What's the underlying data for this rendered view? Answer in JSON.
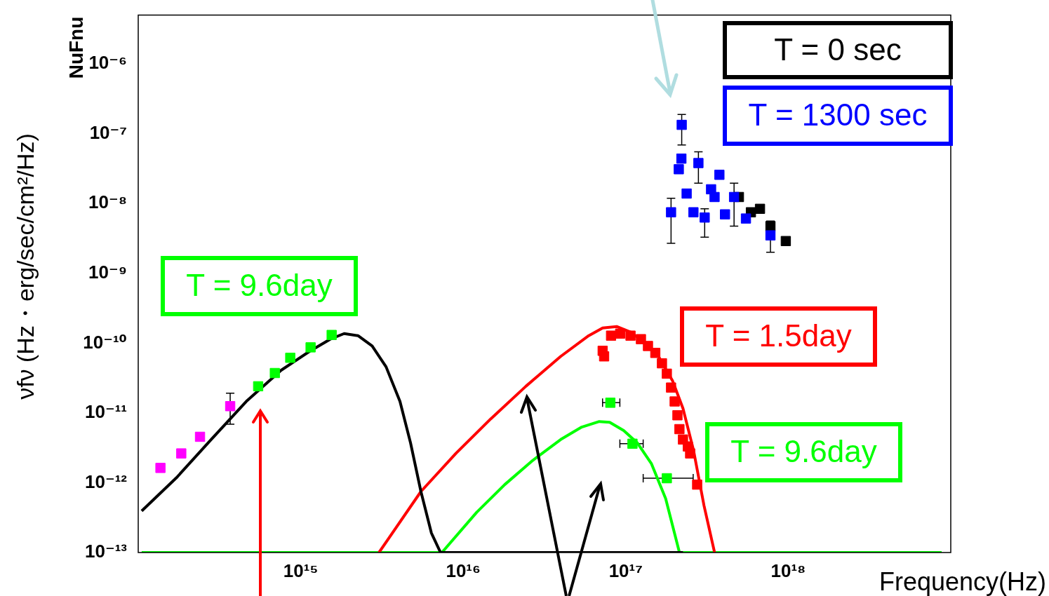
{
  "chart_data": {
    "type": "scatter",
    "xlabel": "Frequency(Hz)",
    "ylabel": "νfν (Hz・erg/sec/cm²/Hz)",
    "annotations": [
      "NuFnu"
    ],
    "log": "xy",
    "marker": "square",
    "xlim": [
      100000000000000.0,
      1e+19
    ],
    "ylim": [
      1e-13,
      5e-06
    ],
    "xticks": [
      {
        "value": 1000000000000000.0,
        "label": "10¹⁵"
      },
      {
        "value": 1e+16,
        "label": "10¹⁶"
      },
      {
        "value": 1e+17,
        "label": "10¹⁷"
      },
      {
        "value": 1e+18,
        "label": "10¹⁸"
      }
    ],
    "yticks": [
      {
        "value": 1e-13,
        "label": "10⁻¹³"
      },
      {
        "value": 1e-12,
        "label": "10⁻¹²"
      },
      {
        "value": 1e-11,
        "label": "10⁻¹¹"
      },
      {
        "value": 1e-10,
        "label": "10⁻¹⁰"
      },
      {
        "value": 1e-09,
        "label": "10⁻⁹"
      },
      {
        "value": 1e-08,
        "label": "10⁻⁸"
      },
      {
        "value": 1e-07,
        "label": "10⁻⁷"
      },
      {
        "value": 1e-06,
        "label": "10⁻⁶"
      }
    ],
    "series": [
      {
        "name": "T = 0 sec",
        "color": "#000000",
        "x": [
          4.97e+17,
          5.89e+17,
          6.7e+17,
          7.77e+17,
          9.66e+17
        ],
        "values": [
          1.24e-08,
          7.5e-09,
          8.4e-09,
          4.75e-09,
          2.9e-09
        ]
      },
      {
        "name": "T = 1300 sec",
        "color": "#0000ff",
        "x": [
          2.21e+17,
          2.2e+17,
          2.12e+17,
          2.8e+17,
          2.37e+17,
          3.77e+17,
          1.9e+17,
          2.61e+17,
          3.06e+17,
          3.35e+17,
          3.52e+17,
          4.08e+17,
          4.64e+17,
          5.49e+17,
          7.77e+17
        ],
        "values": [
          1.34e-07,
          4.4e-08,
          3.1e-08,
          3.8e-08,
          1.39e-08,
          2.58e-08,
          7.5e-09,
          7.5e-09,
          6.3e-09,
          1.6e-08,
          1.24e-08,
          7e-09,
          1.24e-08,
          6.1e-09,
          3.5e-09
        ],
        "errors": [
          [
            6.9e-08,
            1.89e-07
          ],
          null,
          null,
          [
            1.96e-08,
            5.5e-08
          ],
          null,
          null,
          [
            2.7e-09,
            1.19e-08
          ],
          null,
          [
            3.3e-09,
            8.4e-09
          ],
          null,
          null,
          null,
          [
            4.75e-09,
            1.96e-08
          ],
          null,
          [
            2e-09,
            5.6e-09
          ]
        ]
      },
      {
        "color": "#ff00ff",
        "x": [
          137000000000000.0,
          184000000000000.0,
          240000000000000.0,
          368000000000000.0
        ],
        "values": [
          1.63e-12,
          2.63e-12,
          4.55e-12,
          1.25e-11
        ],
        "errors": [
          null,
          null,
          null,
          [
            6.9e-12,
            1.92e-11
          ]
        ]
      },
      {
        "name": "T = 9.6day",
        "color": "#00ff00",
        "x": [
          547000000000000.0,
          693000000000000.0,
          862000000000000.0,
          1150000000000000.0,
          1550000000000000.0,
          8.04e+16,
          1.1e+17,
          1.79e+17
        ],
        "values": [
          2.41e-11,
          3.73e-11,
          6.17e-11,
          8.7e-11,
          1.31e-10,
          1.4e-11,
          3.62e-12,
          1.16e-12
        ],
        "xerrors": [
          null,
          null,
          null,
          null,
          null,
          [
            7.2e+16,
            9.2e+16
          ],
          [
            9.2e+16,
            1.28e+17
          ],
          [
            1.28e+17,
            2.6e+17
          ]
        ]
      },
      {
        "name": "T = 1.5day",
        "color": "#ff0000",
        "x": [
          7.21e+16,
          7.36e+16,
          8.12e+16,
          9.24e+16,
          1.07e+17,
          1.24e+17,
          1.37e+17,
          1.52e+17,
          1.67e+17,
          1.79e+17,
          1.9e+17,
          2e+17,
          2.08e+17,
          2.14e+17,
          2.25e+17,
          2.41e+17,
          2.49e+17,
          2.75e+17
        ],
        "values": [
          7.76e-11,
          6.46e-11,
          1.28e-10,
          1.37e-10,
          1.28e-10,
          1.14e-10,
          9.1e-11,
          7.24e-11,
          5.14e-11,
          3.65e-11,
          2.31e-11,
          1.46e-11,
          9.25e-12,
          5.86e-12,
          4.16e-12,
          3.31e-12,
          2.63e-12,
          9.4e-13
        ]
      },
      {
        "type": "line",
        "marker": "none",
        "color": "#000000",
        "x": [
          105000000000000.0,
          172000000000000.0,
          281000000000000.0,
          462000000000000.0,
          758000000000000.0,
          1130000000000000.0,
          1520000000000000.0,
          1850000000000000.0,
          2250000000000000.0,
          2750000000000000.0,
          3350000000000000.0,
          4080000000000000.0,
          4740000000000000.0,
          5490000000000000.0,
          6370000000000000.0,
          7250000000000000.0,
          2.25e+17
        ],
        "values": [
          3.94e-13,
          1.18e-12,
          4.16e-12,
          1.46e-11,
          4.09e-11,
          7.59e-11,
          1.14e-10,
          1.37e-10,
          1.28e-10,
          9.1e-11,
          4.58e-11,
          1.46e-11,
          3.71e-12,
          7.48e-13,
          1.9e-13,
          1e-13,
          1e-13
        ]
      },
      {
        "type": "line",
        "marker": "none",
        "color": "#ff0000",
        "x": [
          3030000000000000.0,
          5490000000000000.0,
          9010000000000000.0,
          1.48e+16,
          2.43e+16,
          3.98e+16,
          5.92e+16,
          7.21e+16,
          8.79e+16,
          1.07e+17,
          1.31e+17,
          1.59e+17,
          1.94e+17,
          2.25e+17,
          2.61e+17,
          3.03e+17,
          3.52e+17
        ],
        "values": [
          1e-13,
          7.48e-13,
          2.63e-12,
          8.26e-12,
          2.41e-11,
          6.46e-11,
          1.28e-10,
          1.65e-10,
          1.73e-10,
          1.44e-10,
          1.02e-10,
          6.46e-11,
          2.9e-11,
          1.16e-11,
          2.95e-12,
          4.73e-13,
          1e-13
        ]
      },
      {
        "type": "line",
        "marker": "none",
        "color": "#00ff00",
        "x": [
          105000000000000.0,
          7390000000000000.0,
          1.21e+16,
          1.8e+16,
          2.68e+16,
          3.98e+16,
          5.36e+16,
          6.87e+16,
          7.96e+16,
          9.71e+16,
          1.18e+17,
          1.44e+17,
          1.76e+17,
          2.14e+17,
          8.79e+18
        ],
        "values": [
          1e-13,
          1e-13,
          3.77e-13,
          9.4e-13,
          2.09e-12,
          4.16e-12,
          6.27e-12,
          7.53e-12,
          7.36e-12,
          5.6e-12,
          3.71e-12,
          1.87e-12,
          5.95e-13,
          1e-13,
          1e-13
        ]
      }
    ]
  }
}
